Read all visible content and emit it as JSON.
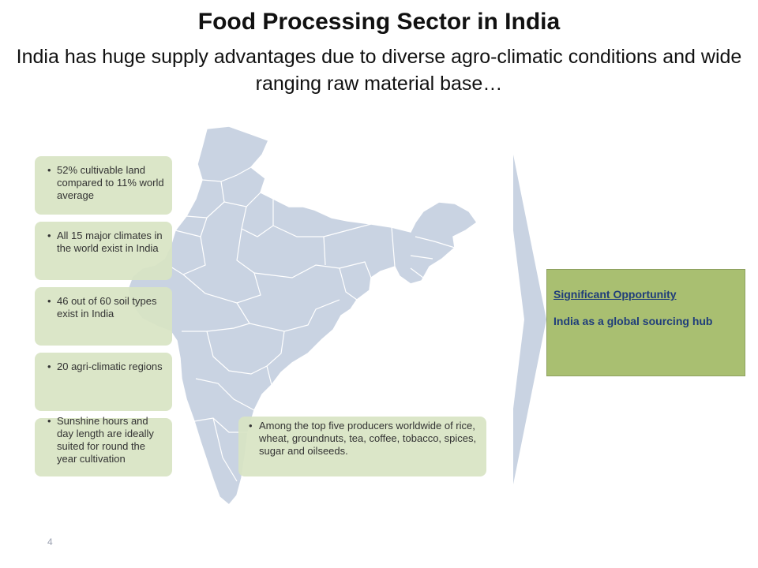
{
  "slide": {
    "title": "Food Processing Sector in India",
    "subtitle": "India has huge supply advantages due to diverse agro-climatic conditions and wide ranging raw material base…",
    "page_number": "4"
  },
  "facts": [
    "52% cultivable land compared to 11% world average",
    "All 15 major climates in the world exist in India",
    "46 out of 60 soil types exist in India",
    "20 agri-climatic regions",
    "Sunshine hours and day length are ideally suited for round the year cultivation"
  ],
  "producers_fact": "Among the top five producers worldwide of rice, wheat, groundnuts, tea, coffee, tobacco, spices, sugar and oilseeds.",
  "bullet_glyph": "•",
  "opportunity": {
    "heading": "Significant Opportunity",
    "body": "India as a global sourcing hub"
  },
  "colors": {
    "map_fill": "#c9d3e2",
    "map_border": "#ffffff",
    "fact_box": "#d8e4c4",
    "opportunity_box": "#a9bf71",
    "opportunity_text": "#1f3d7a"
  }
}
